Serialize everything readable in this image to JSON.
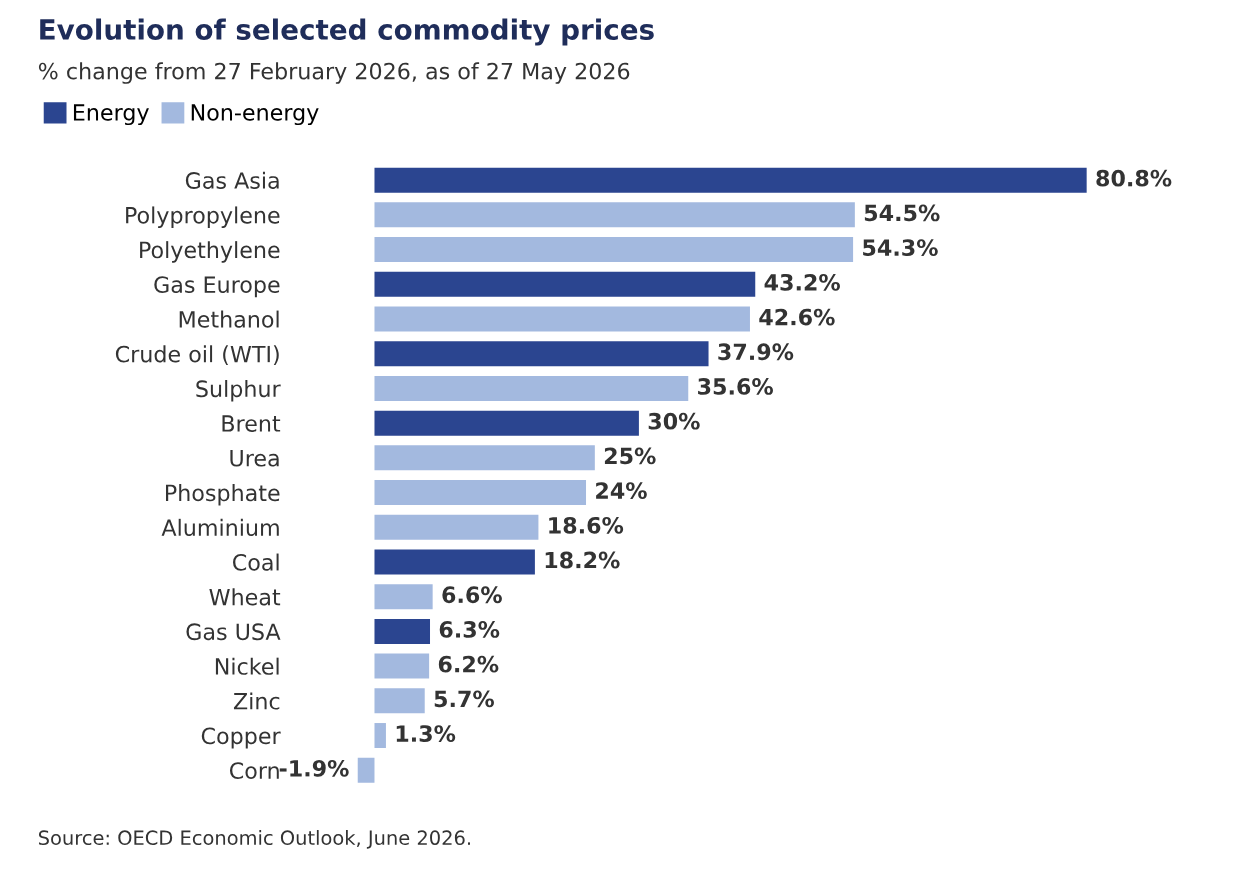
{
  "chart_data": {
    "type": "bar",
    "orientation": "horizontal",
    "title": "Evolution of selected commodity prices",
    "subtitle": "% change from 27 February 2026, as of 27 May 2026",
    "categories": [
      "Gas Asia",
      "Polypropylene",
      "Polyethylene",
      "Gas Europe",
      "Methanol",
      "Crude oil (WTI)",
      "Sulphur",
      "Brent",
      "Urea",
      "Phosphate",
      "Aluminium",
      "Coal",
      "Wheat",
      "Gas USA",
      "Nickel",
      "Zinc",
      "Copper",
      "Corn"
    ],
    "series": [
      {
        "name": "Energy",
        "color": "#2b4590",
        "values": [
          80.8,
          null,
          null,
          43.2,
          null,
          37.9,
          null,
          30,
          null,
          null,
          null,
          18.2,
          null,
          6.3,
          null,
          null,
          null,
          null
        ],
        "value_labels": [
          "80.8%",
          null,
          null,
          "43.2%",
          null,
          "37.9%",
          null,
          "30%",
          null,
          null,
          null,
          "18.2%",
          null,
          "6.3%",
          null,
          null,
          null,
          null
        ]
      },
      {
        "name": "Non-energy",
        "color": "#a3b9df",
        "values": [
          null,
          54.5,
          54.3,
          null,
          42.6,
          null,
          35.6,
          null,
          25,
          24,
          18.6,
          null,
          6.6,
          null,
          6.2,
          5.7,
          1.3,
          -1.9
        ],
        "value_labels": [
          null,
          "54.5%",
          "54.3%",
          null,
          "42.6%",
          null,
          "35.6%",
          null,
          "25%",
          "24%",
          "18.6%",
          null,
          "6.6%",
          null,
          "6.2%",
          "5.7%",
          "1.3%",
          "-1.9%"
        ]
      }
    ],
    "legend": "top left",
    "grid": false,
    "annotations": [
      "Source: OECD Economic Outlook, June 2026."
    ]
  }
}
